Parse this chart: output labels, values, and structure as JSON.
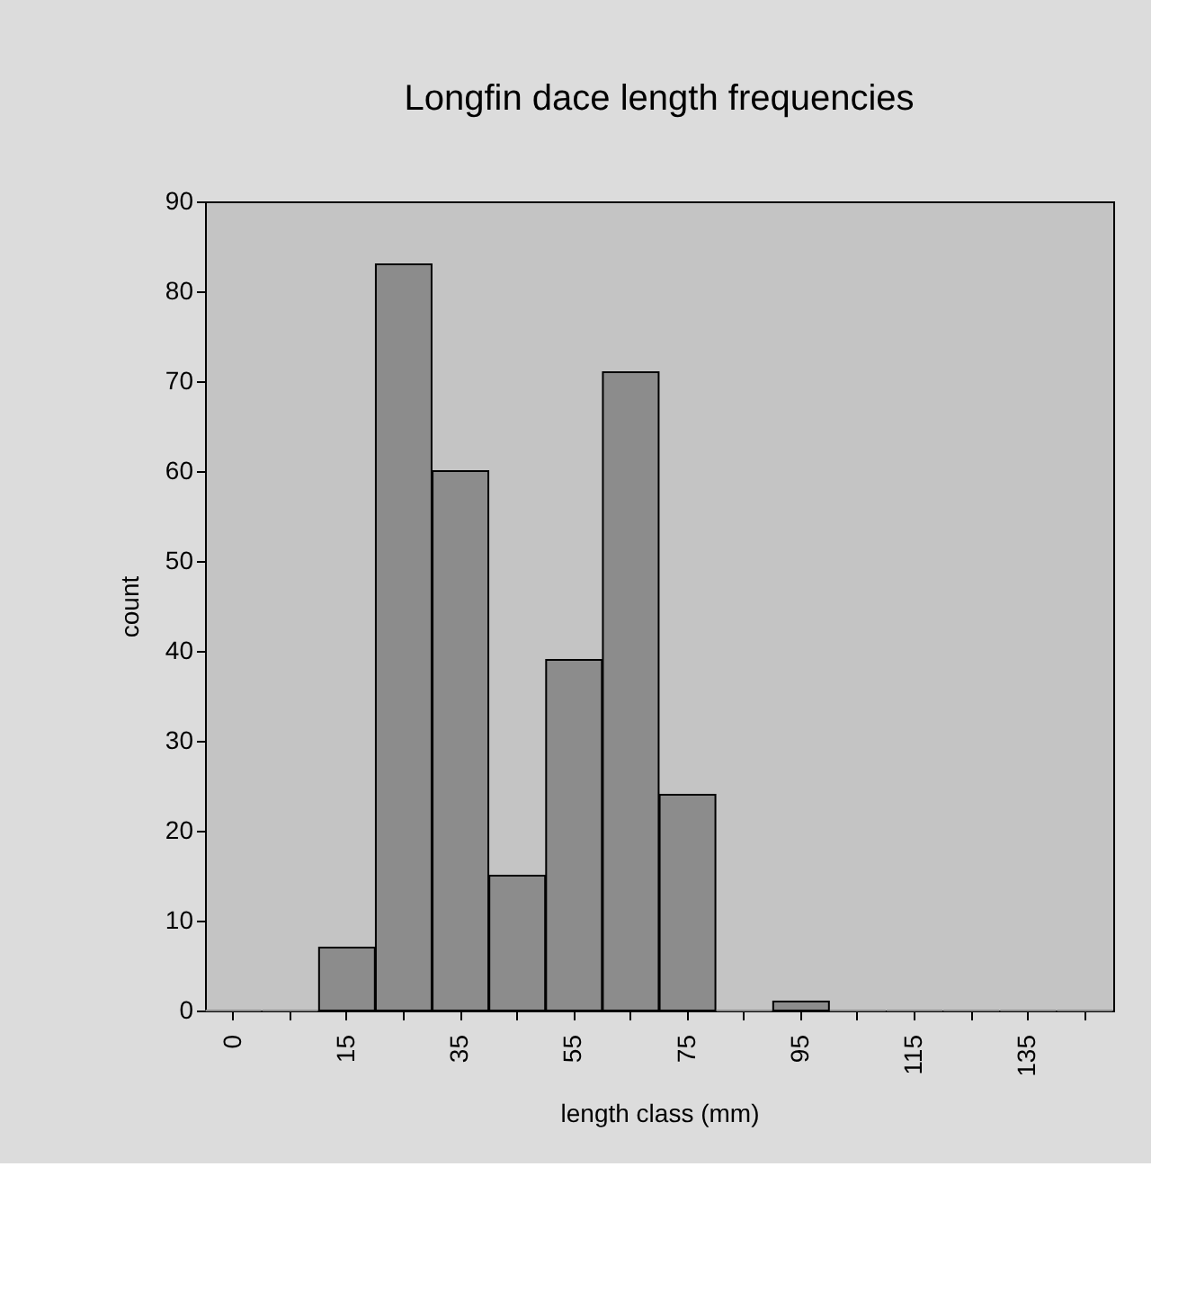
{
  "chart_data": {
    "type": "bar",
    "title": "Longfin dace length frequencies",
    "xlabel": "length class (mm)",
    "ylabel": "count",
    "categories": [
      "0",
      null,
      "15",
      null,
      "35",
      null,
      "55",
      null,
      "75",
      null,
      "95",
      null,
      "115",
      null,
      "135",
      null
    ],
    "values": [
      0,
      0,
      7,
      83,
      60,
      15,
      39,
      71,
      24,
      0,
      1,
      0,
      0,
      0,
      0,
      0
    ],
    "color": "#8c8c8c",
    "ylim": [
      0,
      90
    ],
    "yticks": [
      0,
      10,
      20,
      30,
      40,
      50,
      60,
      70,
      80,
      90
    ],
    "grid": false
  }
}
